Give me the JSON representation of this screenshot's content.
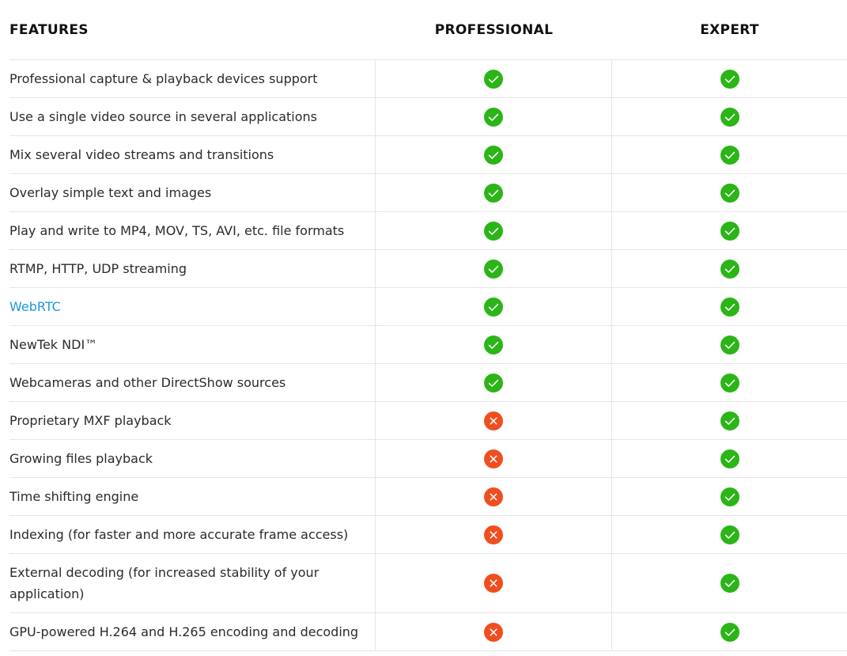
{
  "header": {
    "features": "FEATURES",
    "professional": "PROFESSIONAL",
    "expert": "EXPERT"
  },
  "colors": {
    "yes": "#2bb517",
    "no": "#f04e1e",
    "link": "#1a9ad9"
  },
  "rows": [
    {
      "feature": "Professional capture & playback devices support",
      "professional": "yes-icon",
      "expert": "yes-icon"
    },
    {
      "feature": "Use a single video source in several applications",
      "professional": "yes-icon",
      "expert": "yes-icon"
    },
    {
      "feature": "Mix several video streams and transitions",
      "professional": "yes-icon",
      "expert": "yes-icon"
    },
    {
      "feature": "Overlay simple text and images",
      "professional": "yes-icon",
      "expert": "yes-icon"
    },
    {
      "feature": "Play and write to MP4, MOV, TS, AVI, etc. file formats",
      "professional": "yes-icon",
      "expert": "yes-icon"
    },
    {
      "feature": "RTMP, HTTP, UDP streaming",
      "professional": "yes-icon",
      "expert": "yes-icon"
    },
    {
      "feature": "WebRTC",
      "professional": "yes-icon",
      "expert": "yes-icon",
      "link": true
    },
    {
      "feature": "NewTek NDI™",
      "professional": "yes-icon",
      "expert": "yes-icon"
    },
    {
      "feature": "Webcameras and other DirectShow sources",
      "professional": "yes-icon",
      "expert": "yes-icon"
    },
    {
      "feature": "Proprietary MXF playback",
      "professional": "no-icon",
      "expert": "yes-icon"
    },
    {
      "feature": "Growing files playback",
      "professional": "no-icon",
      "expert": "yes-icon"
    },
    {
      "feature": "Time shifting engine",
      "professional": "no-icon",
      "expert": "yes-icon"
    },
    {
      "feature": "Indexing (for faster and more accurate frame access)",
      "professional": "no-icon",
      "expert": "yes-icon"
    },
    {
      "feature": "External decoding (for increased stability of your application)",
      "professional": "no-icon",
      "expert": "yes-icon",
      "tall": true
    },
    {
      "feature": "GPU-powered H.264 and H.265 encoding and decoding",
      "professional": "no-icon",
      "expert": "yes-icon"
    }
  ]
}
